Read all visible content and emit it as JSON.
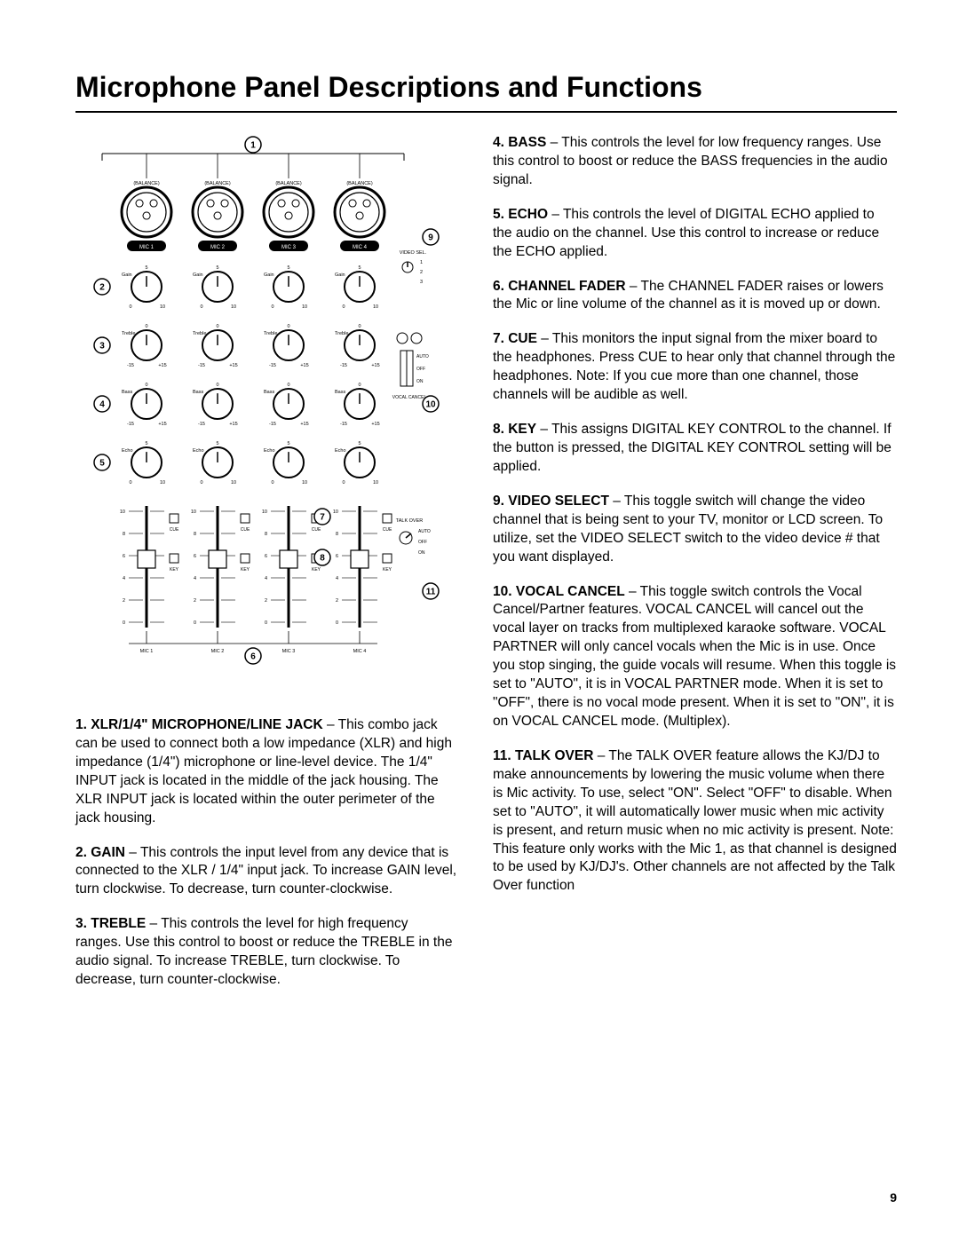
{
  "title": "Microphone Panel Descriptions and Functions",
  "page_number": "9",
  "diagram": {
    "callout_numbers": [
      "1",
      "2",
      "3",
      "4",
      "5",
      "6",
      "7",
      "8",
      "9",
      "10",
      "11"
    ],
    "channels": [
      "MIC  1",
      "MIC  2",
      "MIC  3",
      "MIC  4"
    ],
    "balance_label": "(BALANCE)",
    "knob_rows": [
      {
        "label": "Gain",
        "left": "0",
        "right": "10",
        "top": "5"
      },
      {
        "label": "Treble",
        "left": "-15",
        "right": "+15",
        "top": "0"
      },
      {
        "label": "Bass",
        "left": "-15",
        "right": "+15",
        "top": "0"
      },
      {
        "label": "Echo",
        "left": "0",
        "right": "10",
        "top": "5"
      }
    ],
    "fader_scale": [
      "10",
      "8",
      "6",
      "4",
      "2",
      "0"
    ],
    "fader_buttons": [
      "CUE",
      "KEY"
    ],
    "video_sel": {
      "title": "VIDEO SEL.",
      "options": [
        "1",
        "2",
        "3"
      ]
    },
    "vocal_cancel": {
      "title": "VOCAL CANCEL",
      "options": [
        "AUTO",
        "OFF",
        "ON"
      ]
    },
    "talk_over": {
      "title": "TALK OVER",
      "options": [
        "AUTO",
        "OFF",
        "ON"
      ]
    }
  },
  "descriptions_left": [
    {
      "num": "1",
      "title": "XLR/1/4\" MICROPHONE/LINE JACK",
      "body": " – This combo jack can be used to connect both a low impedance (XLR) and high impedance (1/4\") microphone or line-level device. The 1/4\" INPUT jack is located in the middle of the jack housing. The XLR INPUT jack is located within the outer perimeter of the jack housing."
    },
    {
      "num": "2",
      "title": "GAIN ",
      "body": " – This controls the input level from any device that is connected to the XLR / 1/4\" input jack. To increase GAIN level, turn clockwise. To decrease, turn counter-clockwise."
    },
    {
      "num": "3",
      "title": "TREBLE",
      "body": " – This controls the level for high frequency ranges. Use this control to boost or reduce the TREBLE in the audio signal. To increase TREBLE, turn clockwise. To decrease, turn counter-clockwise."
    }
  ],
  "descriptions_right": [
    {
      "num": "4",
      "title": "BASS",
      "body": " – This controls the level for low frequency ranges. Use this control to boost or reduce the BASS frequencies in the audio signal."
    },
    {
      "num": "5",
      "title": "ECHO",
      "body": " – This controls the level of DIGITAL ECHO applied to the audio on the channel. Use this control to increase or reduce the ECHO applied."
    },
    {
      "num": "6",
      "title": "CHANNEL FADER",
      "body": " – The CHANNEL FADER raises or lowers the Mic or line volume of the channel as it is moved up or down."
    },
    {
      "num": "7",
      "title": "CUE ",
      "body": " – This monitors the input signal from the mixer board to the headphones. Press CUE to hear only that channel through the headphones. Note: If you cue more than one channel, those channels will be audible as well."
    },
    {
      "num": "8",
      "title": "KEY",
      "body": " – This assigns DIGITAL KEY CONTROL to the channel. If the button is pressed, the DIGITAL KEY CONTROL setting will be applied."
    },
    {
      "num": "9",
      "title": "VIDEO SELECT",
      "body": " – This toggle switch will change the video channel that is being sent to your TV, monitor or LCD screen. To utilize, set the VIDEO SELECT switch to the video device # that you want displayed."
    },
    {
      "num": "10",
      "title": " VOCAL CANCEL",
      "body": " – This toggle switch controls the Vocal Cancel/Partner features. VOCAL CANCEL will cancel out the vocal layer on tracks from multiplexed karaoke software. VOCAL PARTNER will only cancel vocals when the Mic is in use. Once you stop singing, the guide vocals will resume. When this toggle is set to \"AUTO\", it is in VOCAL PARTNER mode. When it is set to \"OFF\", there is no vocal mode present. When it is set to \"ON\", it is on VOCAL CANCEL mode. (Multiplex)."
    },
    {
      "num": "11",
      "title": " TALK OVER",
      "body": " – The TALK OVER feature allows the KJ/DJ to make announcements by lowering the music volume when there is Mic activity. To use, select \"ON\". Select \"OFF\" to disable. When set to \"AUTO\", it will automatically lower music when mic activity is present, and return music when no mic activity is present. Note: This feature only works with the Mic 1, as that channel is designed to be used by KJ/DJ's. Other channels are not affected by the Talk Over function"
    }
  ]
}
